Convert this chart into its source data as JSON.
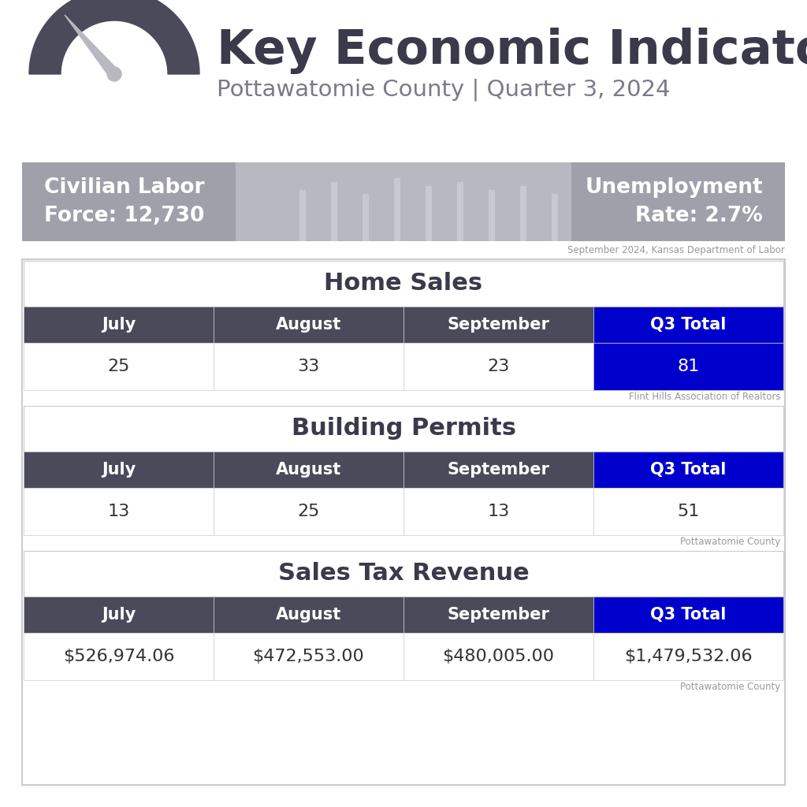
{
  "title": "Key Economic Indicators",
  "subtitle": "Pottawatomie County | Quarter 3, 2024",
  "labor_force_label": "Civilian Labor\nForce: 12,730",
  "unemployment_label": "Unemployment\nRate: 2.7%",
  "labor_source": "September 2024, Kansas Department of Labor",
  "banner_bg": "#a0a0aa",
  "banner_text_color": "#ffffff",
  "title_color": "#3a3a4a",
  "subtitle_color": "#7a7a8a",
  "header_bg": "#4a4a5a",
  "header_text_color": "#ffffff",
  "q3_bg": "#0000cc",
  "q3_text_color": "#ffffff",
  "data_text_color": "#333333",
  "table_border_color": "#cccccc",
  "section_title_color": "#3a3a4a",
  "home_sales": {
    "title": "Home Sales",
    "headers": [
      "July",
      "August",
      "September",
      "Q3 Total"
    ],
    "values": [
      "25",
      "33",
      "23",
      "81"
    ],
    "q3_colored": true,
    "source": "Flint Hills Association of Realtors"
  },
  "building_permits": {
    "title": "Building Permits",
    "headers": [
      "July",
      "August",
      "September",
      "Q3 Total"
    ],
    "values": [
      "13",
      "25",
      "13",
      "51"
    ],
    "q3_colored": false,
    "source": "Pottawatomie County"
  },
  "sales_tax": {
    "title": "Sales Tax Revenue",
    "headers": [
      "July",
      "August",
      "September",
      "Q3 Total"
    ],
    "values": [
      "$526,974.06",
      "$472,553.00",
      "$480,005.00",
      "$1,479,532.06"
    ],
    "q3_colored": false,
    "source": "Pottawatomie County"
  },
  "background_color": "#ffffff"
}
